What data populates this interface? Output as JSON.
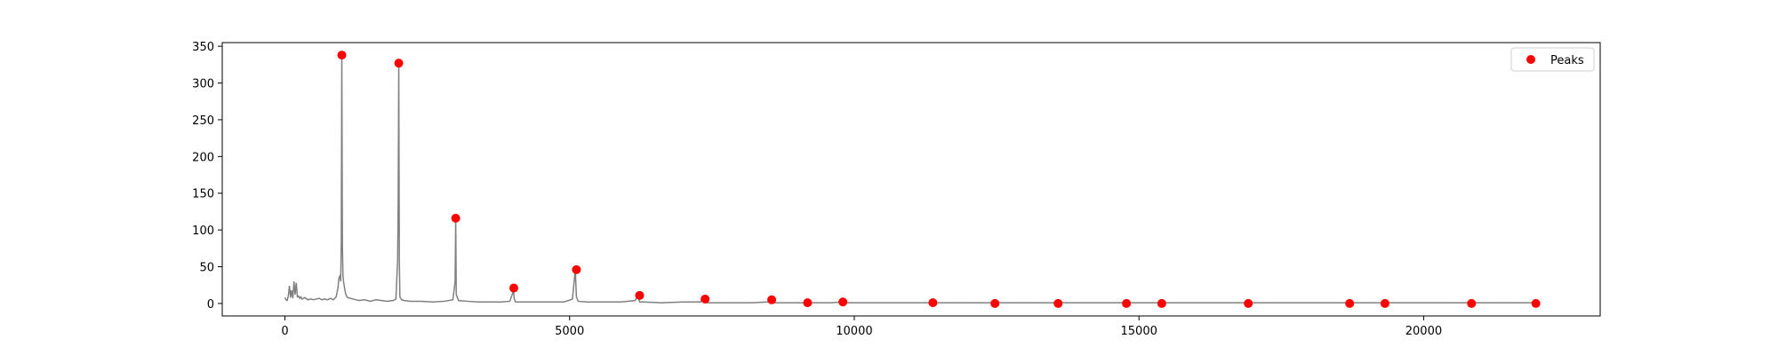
{
  "chart_data": {
    "type": "line",
    "title": "",
    "xlabel": "",
    "ylabel": "",
    "xlim": [
      -1100,
      23100
    ],
    "ylim": [
      -17,
      355
    ],
    "xticks": [
      0,
      5000,
      10000,
      15000,
      20000
    ],
    "yticks": [
      0,
      50,
      100,
      150,
      200,
      250,
      300,
      350
    ],
    "grid": false,
    "legend": {
      "placement": "top-right",
      "entries": [
        "Peaks"
      ]
    },
    "colors": {
      "line": "#808080",
      "peaks": "#ff0000",
      "axes": "#000000"
    },
    "series": [
      {
        "kind": "line",
        "x": [
          0,
          20,
          40,
          60,
          80,
          100,
          120,
          140,
          160,
          180,
          200,
          220,
          240,
          260,
          280,
          300,
          350,
          400,
          450,
          500,
          550,
          600,
          650,
          700,
          750,
          800,
          850,
          900,
          930,
          950,
          970,
          980,
          990,
          1000,
          1010,
          1020,
          1030,
          1050,
          1070,
          1100,
          1200,
          1300,
          1400,
          1500,
          1600,
          1700,
          1800,
          1900,
          1950,
          1980,
          1990,
          2000,
          2010,
          2020,
          2050,
          2100,
          2200,
          2400,
          2600,
          2800,
          2950,
          2990,
          3000,
          3010,
          3050,
          3200,
          3400,
          3600,
          3800,
          3950,
          4000,
          4010,
          4030,
          4050,
          4100,
          4300,
          4600,
          4900,
          5050,
          5100,
          5120,
          5150,
          5300,
          5600,
          5900,
          6150,
          6200,
          6230,
          6300,
          6600,
          7000,
          7300,
          7350,
          7400,
          7800,
          8200,
          8480,
          8500,
          8550,
          9000,
          9150,
          9200,
          9600,
          9780,
          9850,
          10500,
          11000,
          11340,
          11400,
          12000,
          12430,
          12500,
          13000,
          13550,
          13600,
          14000,
          14750,
          14800,
          15350,
          15400,
          16000,
          16880,
          16950,
          17500,
          18000,
          18670,
          18750,
          19300,
          19350,
          20000,
          20820,
          20900,
          21500,
          22000
        ],
        "y": [
          8,
          5,
          4,
          10,
          24,
          8,
          18,
          7,
          30,
          12,
          28,
          9,
          10,
          7,
          9,
          6,
          8,
          5,
          6,
          5,
          6,
          7,
          5,
          6,
          5,
          7,
          5,
          9,
          20,
          35,
          38,
          30,
          80,
          338,
          80,
          38,
          30,
          20,
          12,
          8,
          6,
          4,
          5,
          3,
          5,
          4,
          3,
          4,
          6,
          58,
          140,
          327,
          60,
          9,
          5,
          4,
          3,
          3,
          2,
          3,
          5,
          30,
          116,
          12,
          4,
          3,
          2,
          2,
          2,
          3,
          14,
          21,
          6,
          2,
          2,
          2,
          2,
          2,
          6,
          46,
          9,
          3,
          2,
          2,
          2,
          4,
          11,
          2,
          2,
          1,
          2,
          2,
          7,
          1,
          1,
          1,
          2,
          5,
          1,
          1,
          1,
          1,
          1,
          2,
          1,
          1,
          1,
          1,
          1,
          1,
          1,
          1,
          1,
          1,
          1,
          1,
          1,
          1,
          1,
          1,
          1,
          1,
          1,
          1,
          1,
          1,
          1,
          1,
          1,
          1,
          1,
          1,
          1,
          1
        ]
      },
      {
        "kind": "scatter",
        "name": "Peaks",
        "x": [
          1000,
          2000,
          3000,
          4020,
          5120,
          6230,
          7380,
          8550,
          9180,
          9800,
          11380,
          12470,
          13580,
          14780,
          15400,
          16920,
          18700,
          19320,
          20840,
          21970
        ],
        "y": [
          338,
          327,
          116,
          21,
          46,
          11,
          6,
          5,
          1,
          2,
          1,
          0,
          0,
          0,
          0,
          0,
          0,
          0,
          0,
          0
        ]
      }
    ]
  }
}
